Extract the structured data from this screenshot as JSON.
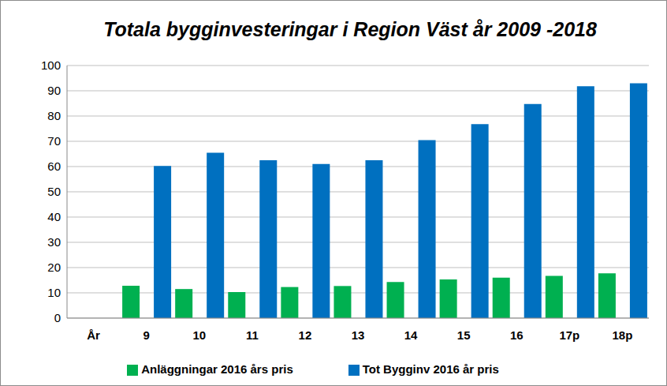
{
  "chart_data": {
    "type": "bar",
    "title": "Totala bygginvesteringar  i Region Väst år 2009 -2018",
    "categories": [
      "År",
      "9",
      "10",
      "11",
      "12",
      "13",
      "14",
      "15",
      "16",
      "17p",
      "18p"
    ],
    "series": [
      {
        "name": "Anläggningar 2016 års pris",
        "color": "#00b050",
        "values": [
          null,
          12.8,
          11.5,
          10.3,
          12.3,
          12.7,
          14.3,
          15.3,
          16.0,
          16.7,
          17.7
        ]
      },
      {
        "name": "Tot Bygginv 2016 år pris",
        "color": "#0070c0",
        "values": [
          null,
          60.2,
          65.5,
          62.5,
          61.0,
          62.5,
          70.5,
          76.8,
          84.8,
          91.8,
          93.0
        ]
      }
    ],
    "ylim": [
      0,
      100
    ],
    "yticks": [
      0,
      10,
      20,
      30,
      40,
      50,
      60,
      70,
      80,
      90,
      100
    ],
    "grid": true,
    "legend": "bottom"
  }
}
